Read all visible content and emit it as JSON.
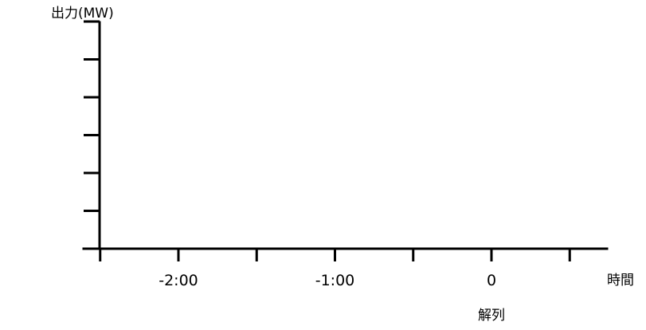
{
  "chart_data": {
    "type": "line",
    "ylabel": "出力(MW)",
    "xlabel": "時間",
    "x_ticks": [
      {
        "value": -150,
        "label": ""
      },
      {
        "value": -120,
        "label": "-2:00"
      },
      {
        "value": -90,
        "label": ""
      },
      {
        "value": -60,
        "label": "-1:00"
      },
      {
        "value": -30,
        "label": ""
      },
      {
        "value": 0,
        "label": "0"
      },
      {
        "value": 30,
        "label": ""
      }
    ],
    "x_annotation": {
      "value": 0,
      "text": "解列"
    },
    "y_tick_count": 6,
    "xlim": [
      -150,
      30
    ],
    "series": [],
    "grid": false,
    "colors": {
      "axis": "#000000",
      "background": "#ffffff"
    }
  }
}
